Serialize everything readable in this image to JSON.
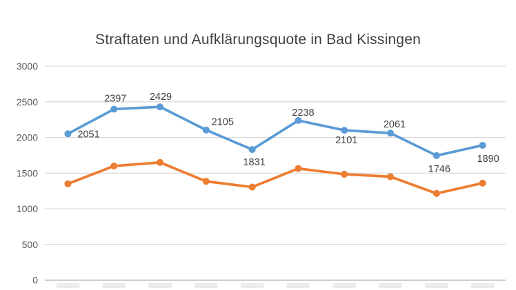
{
  "chart_data": {
    "type": "line",
    "title": "Straftaten und Aufklärungsquote in Bad Kissingen",
    "categories": [
      "",
      "",
      "",
      "",
      "",
      "",
      "",
      "",
      "",
      ""
    ],
    "x_axis_note": "category tick labels are cut off at the bottom edge of the screenshot (only faint tops of the text are visible)",
    "series": [
      {
        "id": "series-blue",
        "name": "",
        "color": "#5B9BD5",
        "values": [
          2051,
          2397,
          2429,
          2105,
          1831,
          2238,
          2101,
          2061,
          1746,
          1890
        ],
        "data_labels": [
          "2051",
          "2397",
          "2429",
          "2105",
          "1831",
          "2238",
          "2101",
          "2061",
          "1746",
          "1890"
        ]
      },
      {
        "id": "series-orange",
        "name": "",
        "color": "#ED7D31",
        "values": [
          1350,
          1600,
          1650,
          1385,
          1305,
          1565,
          1485,
          1450,
          1215,
          1360
        ],
        "values_estimated_from_pixels": true,
        "data_labels": []
      }
    ],
    "xlabel": "",
    "ylabel": "",
    "ylim": [
      0,
      3000
    ],
    "y_ticks": [
      0,
      500,
      1000,
      1500,
      2000,
      2500,
      3000
    ],
    "grid": true,
    "legend": "none",
    "colors": {
      "background": "#ffffff",
      "grid": "#d9d9d9",
      "axis": "#c6c6c6",
      "tick_text": "#595959",
      "title_text": "#404040",
      "data_label_text": "#404040",
      "cropped_label": "#ececec"
    }
  }
}
